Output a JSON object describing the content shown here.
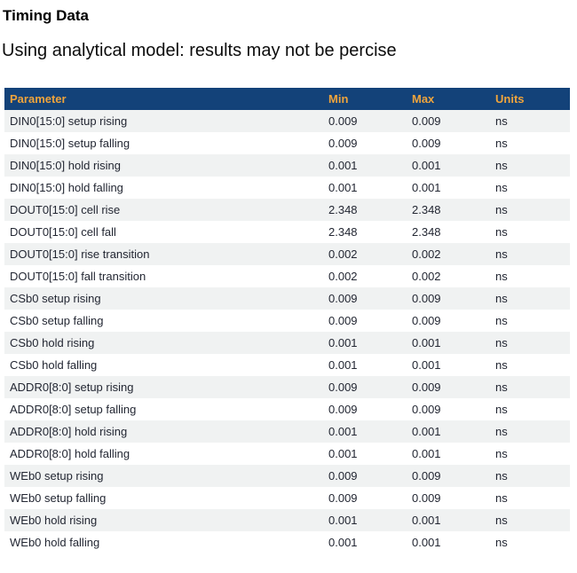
{
  "page": {
    "title": "Timing Data",
    "subtitle": "Using analytical model: results may not be percise"
  },
  "colors": {
    "header_bg": "#134279",
    "header_text": "#efa43c",
    "row_alt_bg": "#f0f2f2",
    "row_text": "#232733"
  },
  "table": {
    "columns": [
      "Parameter",
      "Min",
      "Max",
      "Units"
    ],
    "rows": [
      {
        "parameter": "DIN0[15:0] setup rising",
        "min": "0.009",
        "max": "0.009",
        "units": "ns"
      },
      {
        "parameter": "DIN0[15:0] setup falling",
        "min": "0.009",
        "max": "0.009",
        "units": "ns"
      },
      {
        "parameter": "DIN0[15:0] hold rising",
        "min": "0.001",
        "max": "0.001",
        "units": "ns"
      },
      {
        "parameter": "DIN0[15:0] hold falling",
        "min": "0.001",
        "max": "0.001",
        "units": "ns"
      },
      {
        "parameter": "DOUT0[15:0] cell rise",
        "min": "2.348",
        "max": "2.348",
        "units": "ns"
      },
      {
        "parameter": "DOUT0[15:0] cell fall",
        "min": "2.348",
        "max": "2.348",
        "units": "ns"
      },
      {
        "parameter": "DOUT0[15:0] rise transition",
        "min": "0.002",
        "max": "0.002",
        "units": "ns"
      },
      {
        "parameter": "DOUT0[15:0] fall transition",
        "min": "0.002",
        "max": "0.002",
        "units": "ns"
      },
      {
        "parameter": "CSb0 setup rising",
        "min": "0.009",
        "max": "0.009",
        "units": "ns"
      },
      {
        "parameter": "CSb0 setup falling",
        "min": "0.009",
        "max": "0.009",
        "units": "ns"
      },
      {
        "parameter": "CSb0 hold rising",
        "min": "0.001",
        "max": "0.001",
        "units": "ns"
      },
      {
        "parameter": "CSb0 hold falling",
        "min": "0.001",
        "max": "0.001",
        "units": "ns"
      },
      {
        "parameter": "ADDR0[8:0] setup rising",
        "min": "0.009",
        "max": "0.009",
        "units": "ns"
      },
      {
        "parameter": "ADDR0[8:0] setup falling",
        "min": "0.009",
        "max": "0.009",
        "units": "ns"
      },
      {
        "parameter": "ADDR0[8:0] hold rising",
        "min": "0.001",
        "max": "0.001",
        "units": "ns"
      },
      {
        "parameter": "ADDR0[8:0] hold falling",
        "min": "0.001",
        "max": "0.001",
        "units": "ns"
      },
      {
        "parameter": "WEb0 setup rising",
        "min": "0.009",
        "max": "0.009",
        "units": "ns"
      },
      {
        "parameter": "WEb0 setup falling",
        "min": "0.009",
        "max": "0.009",
        "units": "ns"
      },
      {
        "parameter": "WEb0 hold rising",
        "min": "0.001",
        "max": "0.001",
        "units": "ns"
      },
      {
        "parameter": "WEb0 hold falling",
        "min": "0.001",
        "max": "0.001",
        "units": "ns"
      }
    ]
  }
}
